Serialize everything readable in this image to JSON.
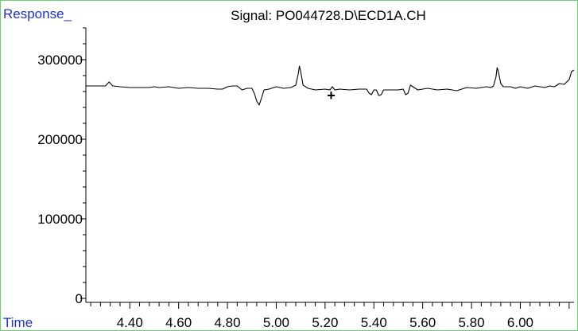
{
  "chart_data": {
    "type": "line",
    "title": "Signal: PO044728.D\\ECD1A.CH",
    "ylabel": "Response_",
    "xlabel": "Time",
    "xlim": [
      4.22,
      6.22
    ],
    "ylim": [
      -5000,
      340000
    ],
    "x_ticks": [
      "4.40",
      "4.60",
      "4.80",
      "5.00",
      "5.20",
      "5.40",
      "5.60",
      "5.80",
      "6.00"
    ],
    "x_tick_values": [
      4.4,
      4.6,
      4.8,
      5.0,
      5.2,
      5.4,
      5.6,
      5.8,
      6.0
    ],
    "y_ticks": [
      "0",
      "100000",
      "200000",
      "300000"
    ],
    "y_tick_values": [
      0,
      100000,
      200000,
      300000
    ],
    "cursor_marker": {
      "x": 5.225,
      "y": 255000,
      "symbol": "+"
    },
    "series": [
      {
        "color": "#000000",
        "x": [
          4.22,
          4.26,
          4.3,
          4.315,
          4.33,
          4.36,
          4.4,
          4.44,
          4.48,
          4.5,
          4.52,
          4.56,
          4.6,
          4.64,
          4.68,
          4.72,
          4.76,
          4.78,
          4.8,
          4.82,
          4.84,
          4.86,
          4.88,
          4.9,
          4.91,
          4.92,
          4.93,
          4.94,
          4.95,
          4.97,
          5.0,
          5.03,
          5.06,
          5.08,
          5.09,
          5.095,
          5.1,
          5.11,
          5.13,
          5.16,
          5.2,
          5.22,
          5.23,
          5.24,
          5.26,
          5.3,
          5.34,
          5.37,
          5.38,
          5.39,
          5.4,
          5.41,
          5.42,
          5.43,
          5.44,
          5.46,
          5.5,
          5.52,
          5.53,
          5.54,
          5.55,
          5.58,
          5.62,
          5.66,
          5.7,
          5.74,
          5.78,
          5.82,
          5.86,
          5.88,
          5.89,
          5.9,
          5.905,
          5.91,
          5.92,
          5.93,
          5.96,
          5.98,
          6.0,
          6.03,
          6.06,
          6.08,
          6.1,
          6.12,
          6.14,
          6.16,
          6.18,
          6.2,
          6.21,
          6.22
        ],
        "y": [
          267000,
          267000,
          267000,
          272000,
          267000,
          266000,
          265000,
          265000,
          265000,
          266000,
          265000,
          266000,
          264000,
          265000,
          264000,
          264000,
          263000,
          263000,
          266000,
          267000,
          267000,
          262000,
          264000,
          264000,
          258000,
          248000,
          243000,
          252000,
          262000,
          263000,
          266000,
          264000,
          265000,
          268000,
          282000,
          292000,
          285000,
          268000,
          264000,
          262000,
          263000,
          262000,
          266000,
          262000,
          263000,
          262000,
          263000,
          263000,
          258000,
          256000,
          262000,
          262000,
          255000,
          256000,
          262000,
          262000,
          262000,
          263000,
          256000,
          258000,
          268000,
          262000,
          264000,
          262000,
          263000,
          261000,
          265000,
          264000,
          266000,
          265000,
          267000,
          278000,
          290000,
          285000,
          270000,
          266000,
          266000,
          264000,
          266000,
          264000,
          267000,
          266000,
          265000,
          267000,
          266000,
          270000,
          269000,
          275000,
          285000,
          287000
        ]
      }
    ]
  }
}
